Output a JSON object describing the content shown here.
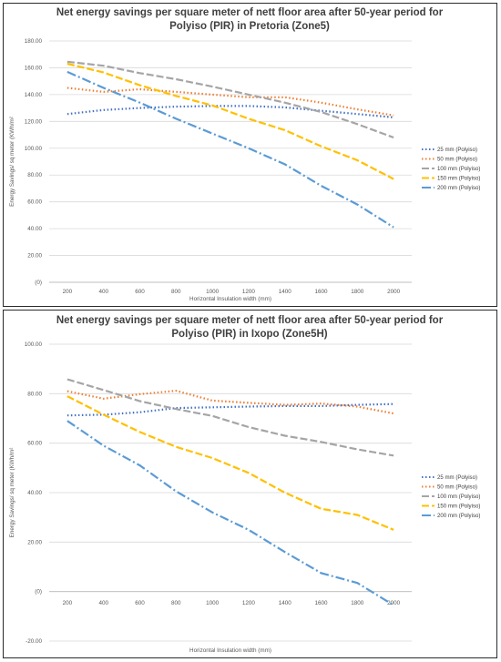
{
  "colors": {
    "s25": "#4472c4",
    "s50": "#ed7d31",
    "s100": "#a5a5a5",
    "s150": "#ffc000",
    "s200": "#5b9bd5"
  },
  "chart_data": [
    {
      "type": "line",
      "title_lines": [
        "Net energy savings per square meter of nett floor area after 50-year period for",
        "Polyiso (PIR) in Pretoria (Zone5)"
      ],
      "xlabel": "Horizontal Insulation width (mm)",
      "ylabel": "Energy Savings/ sq meter (KWh/m²",
      "x": [
        200,
        400,
        600,
        800,
        1000,
        1200,
        1400,
        1600,
        1800,
        2000
      ],
      "ylim": [
        0,
        180
      ],
      "ytick_labels": [
        "(0)",
        "20.00",
        "40.00",
        "60.00",
        "80.00",
        "100.00",
        "120.00",
        "140.00",
        "160.00",
        "180.00"
      ],
      "grid": true,
      "legend_position": "right",
      "series": [
        {
          "name": "25 mm (Polyiso)",
          "color_key": "s25",
          "dash": "1.5 2.5",
          "width": 2.2,
          "values": [
            125.5,
            128.5,
            130,
            131,
            131.5,
            131.5,
            130.5,
            128,
            125.5,
            123
          ]
        },
        {
          "name": "50 mm (Polyiso)",
          "color_key": "s50",
          "dash": "1.5 2.5",
          "width": 2.2,
          "values": [
            145,
            142,
            144,
            142,
            140,
            138,
            138,
            134,
            129,
            124.5
          ]
        },
        {
          "name": "100 mm (Polyiso)",
          "color_key": "s100",
          "dash": "8 3",
          "width": 2.2,
          "values": [
            164.5,
            161.5,
            156,
            151.5,
            146,
            140,
            134,
            127,
            118,
            108
          ]
        },
        {
          "name": "150 mm (Polyiso)",
          "color_key": "s150",
          "dash": "8 3",
          "width": 2.2,
          "values": [
            163,
            156.5,
            147,
            139,
            132,
            122,
            113.5,
            101.5,
            91,
            77
          ]
        },
        {
          "name": "200 mm (Polyiso)",
          "color_key": "s200",
          "dash": "10 3 2 3",
          "width": 2.2,
          "values": [
            157,
            145,
            134,
            122,
            111,
            100,
            88,
            72,
            58,
            41
          ]
        }
      ]
    },
    {
      "type": "line",
      "title_lines": [
        "Net energy savings per square meter of nett floor area after 50-year period for",
        "Polyiso (PIR) in Ixopo (Zone5H)"
      ],
      "xlabel": "Horizontal Insulation width (mm)",
      "ylabel": "Energy Savings/ sq meter (KWh/m²",
      "x": [
        200,
        400,
        600,
        800,
        1000,
        1200,
        1400,
        1600,
        1800,
        2000
      ],
      "ylim": [
        -20,
        100
      ],
      "ytick_labels": [
        "-20.00",
        "(0)",
        "20.00",
        "40.00",
        "60.00",
        "80.00",
        "100.00"
      ],
      "grid": true,
      "legend_position": "right",
      "series": [
        {
          "name": "25 mm (Polyiso)",
          "color_key": "s25",
          "dash": "1.5 2.5",
          "width": 2.2,
          "values": [
            71.2,
            71.5,
            72.5,
            74.2,
            74.5,
            74.8,
            75,
            75,
            75.5,
            75.8
          ]
        },
        {
          "name": "50 mm (Polyiso)",
          "color_key": "s50",
          "dash": "1.5 2.5",
          "width": 2.2,
          "values": [
            81,
            78,
            79.8,
            81.2,
            77.2,
            76.3,
            75.5,
            76,
            74.8,
            72
          ]
        },
        {
          "name": "100 mm (Polyiso)",
          "color_key": "s100",
          "dash": "8 3",
          "width": 2.2,
          "values": [
            85.8,
            81.5,
            77,
            73.8,
            71,
            66.5,
            63,
            60.5,
            57.5,
            55
          ]
        },
        {
          "name": "150 mm (Polyiso)",
          "color_key": "s150",
          "dash": "8 3",
          "width": 2.2,
          "values": [
            79,
            71.5,
            64.5,
            58.5,
            54,
            48,
            40,
            33.5,
            31,
            25
          ]
        },
        {
          "name": "200 mm (Polyiso)",
          "color_key": "s200",
          "dash": "10 3 2 3",
          "width": 2.2,
          "values": [
            69,
            59,
            51,
            40.5,
            32,
            25,
            16,
            7.5,
            3.5,
            -5.5
          ]
        }
      ]
    }
  ]
}
